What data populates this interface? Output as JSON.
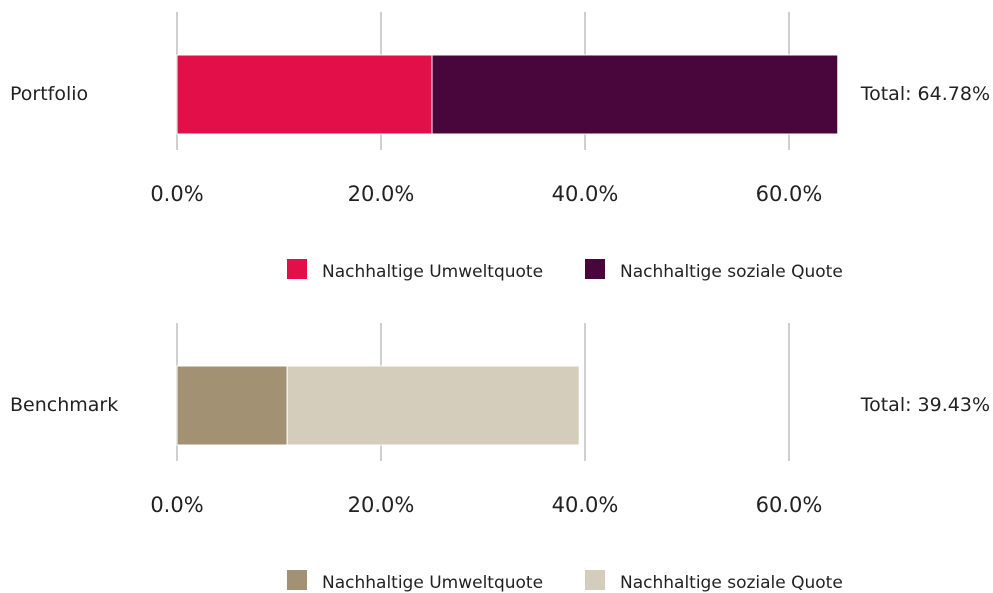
{
  "chart_data": [
    {
      "type": "stacked-bar",
      "orientation": "horizontal",
      "categories": [
        "Portfolio"
      ],
      "series": [
        {
          "name": "Nachhaltige Umweltquote",
          "color": "#e30f48",
          "values": [
            25.0
          ]
        },
        {
          "name": "Nachhaltige soziale Quote",
          "color": "#48063d",
          "values": [
            39.78
          ]
        }
      ],
      "annotation": "Total: 64.78%",
      "xlim": [
        0,
        65
      ],
      "xticks": [
        {
          "value": 0,
          "label": "0.0%"
        },
        {
          "value": 20,
          "label": "20.0%"
        },
        {
          "value": 40,
          "label": "40.0%"
        },
        {
          "value": 60,
          "label": "60.0%"
        }
      ],
      "grid": true,
      "legend": "bottom"
    },
    {
      "type": "stacked-bar",
      "orientation": "horizontal",
      "categories": [
        "Benchmark"
      ],
      "series": [
        {
          "name": "Nachhaltige Umweltquote",
          "color": "#a39174",
          "values": [
            10.8
          ]
        },
        {
          "name": "Nachhaltige soziale Quote",
          "color": "#d4cdbb",
          "values": [
            28.63
          ]
        }
      ],
      "annotation": "Total: 39.43%",
      "xlim": [
        0,
        65
      ],
      "xticks": [
        {
          "value": 0,
          "label": "0.0%"
        },
        {
          "value": 20,
          "label": "20.0%"
        },
        {
          "value": 40,
          "label": "40.0%"
        },
        {
          "value": 60,
          "label": "60.0%"
        }
      ],
      "grid": true,
      "legend": "bottom"
    }
  ]
}
